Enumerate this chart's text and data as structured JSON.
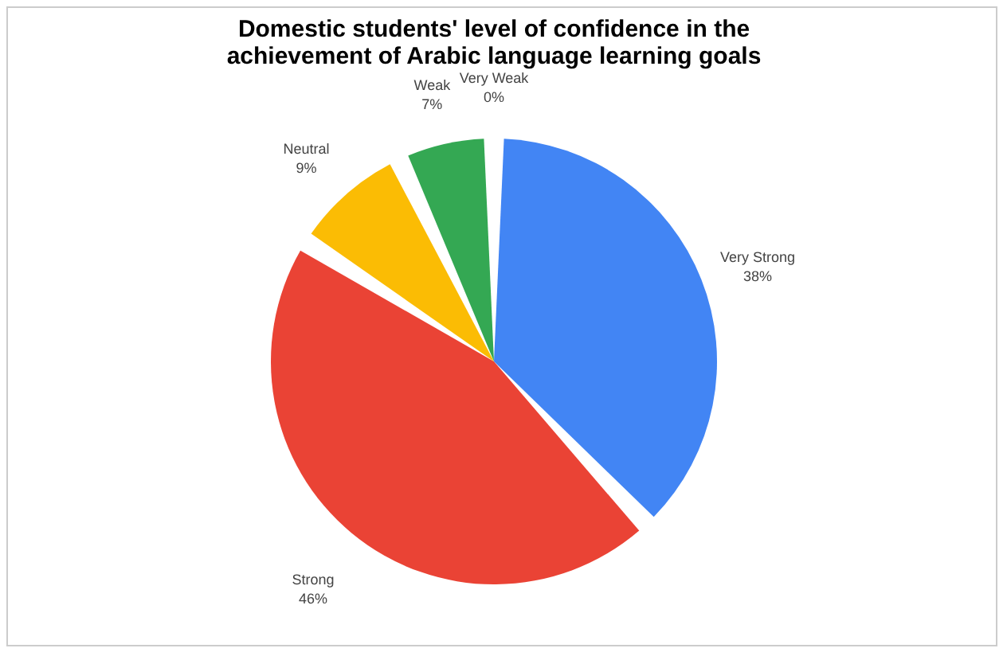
{
  "chart_data": {
    "type": "pie",
    "title": "Domestic students' level of confidence in the achievement of Arabic language learning goals",
    "categories": [
      "Very Strong",
      "Strong",
      "Neutral",
      "Weak",
      "Very Weak"
    ],
    "values": [
      38,
      46,
      9,
      7,
      0
    ],
    "colors": [
      "#4285f4",
      "#ea4335",
      "#fbbc04",
      "#34a853",
      "#ff6d01"
    ],
    "value_labels": [
      "38%",
      "46%",
      "9%",
      "7%",
      "0%"
    ],
    "legend": false
  }
}
